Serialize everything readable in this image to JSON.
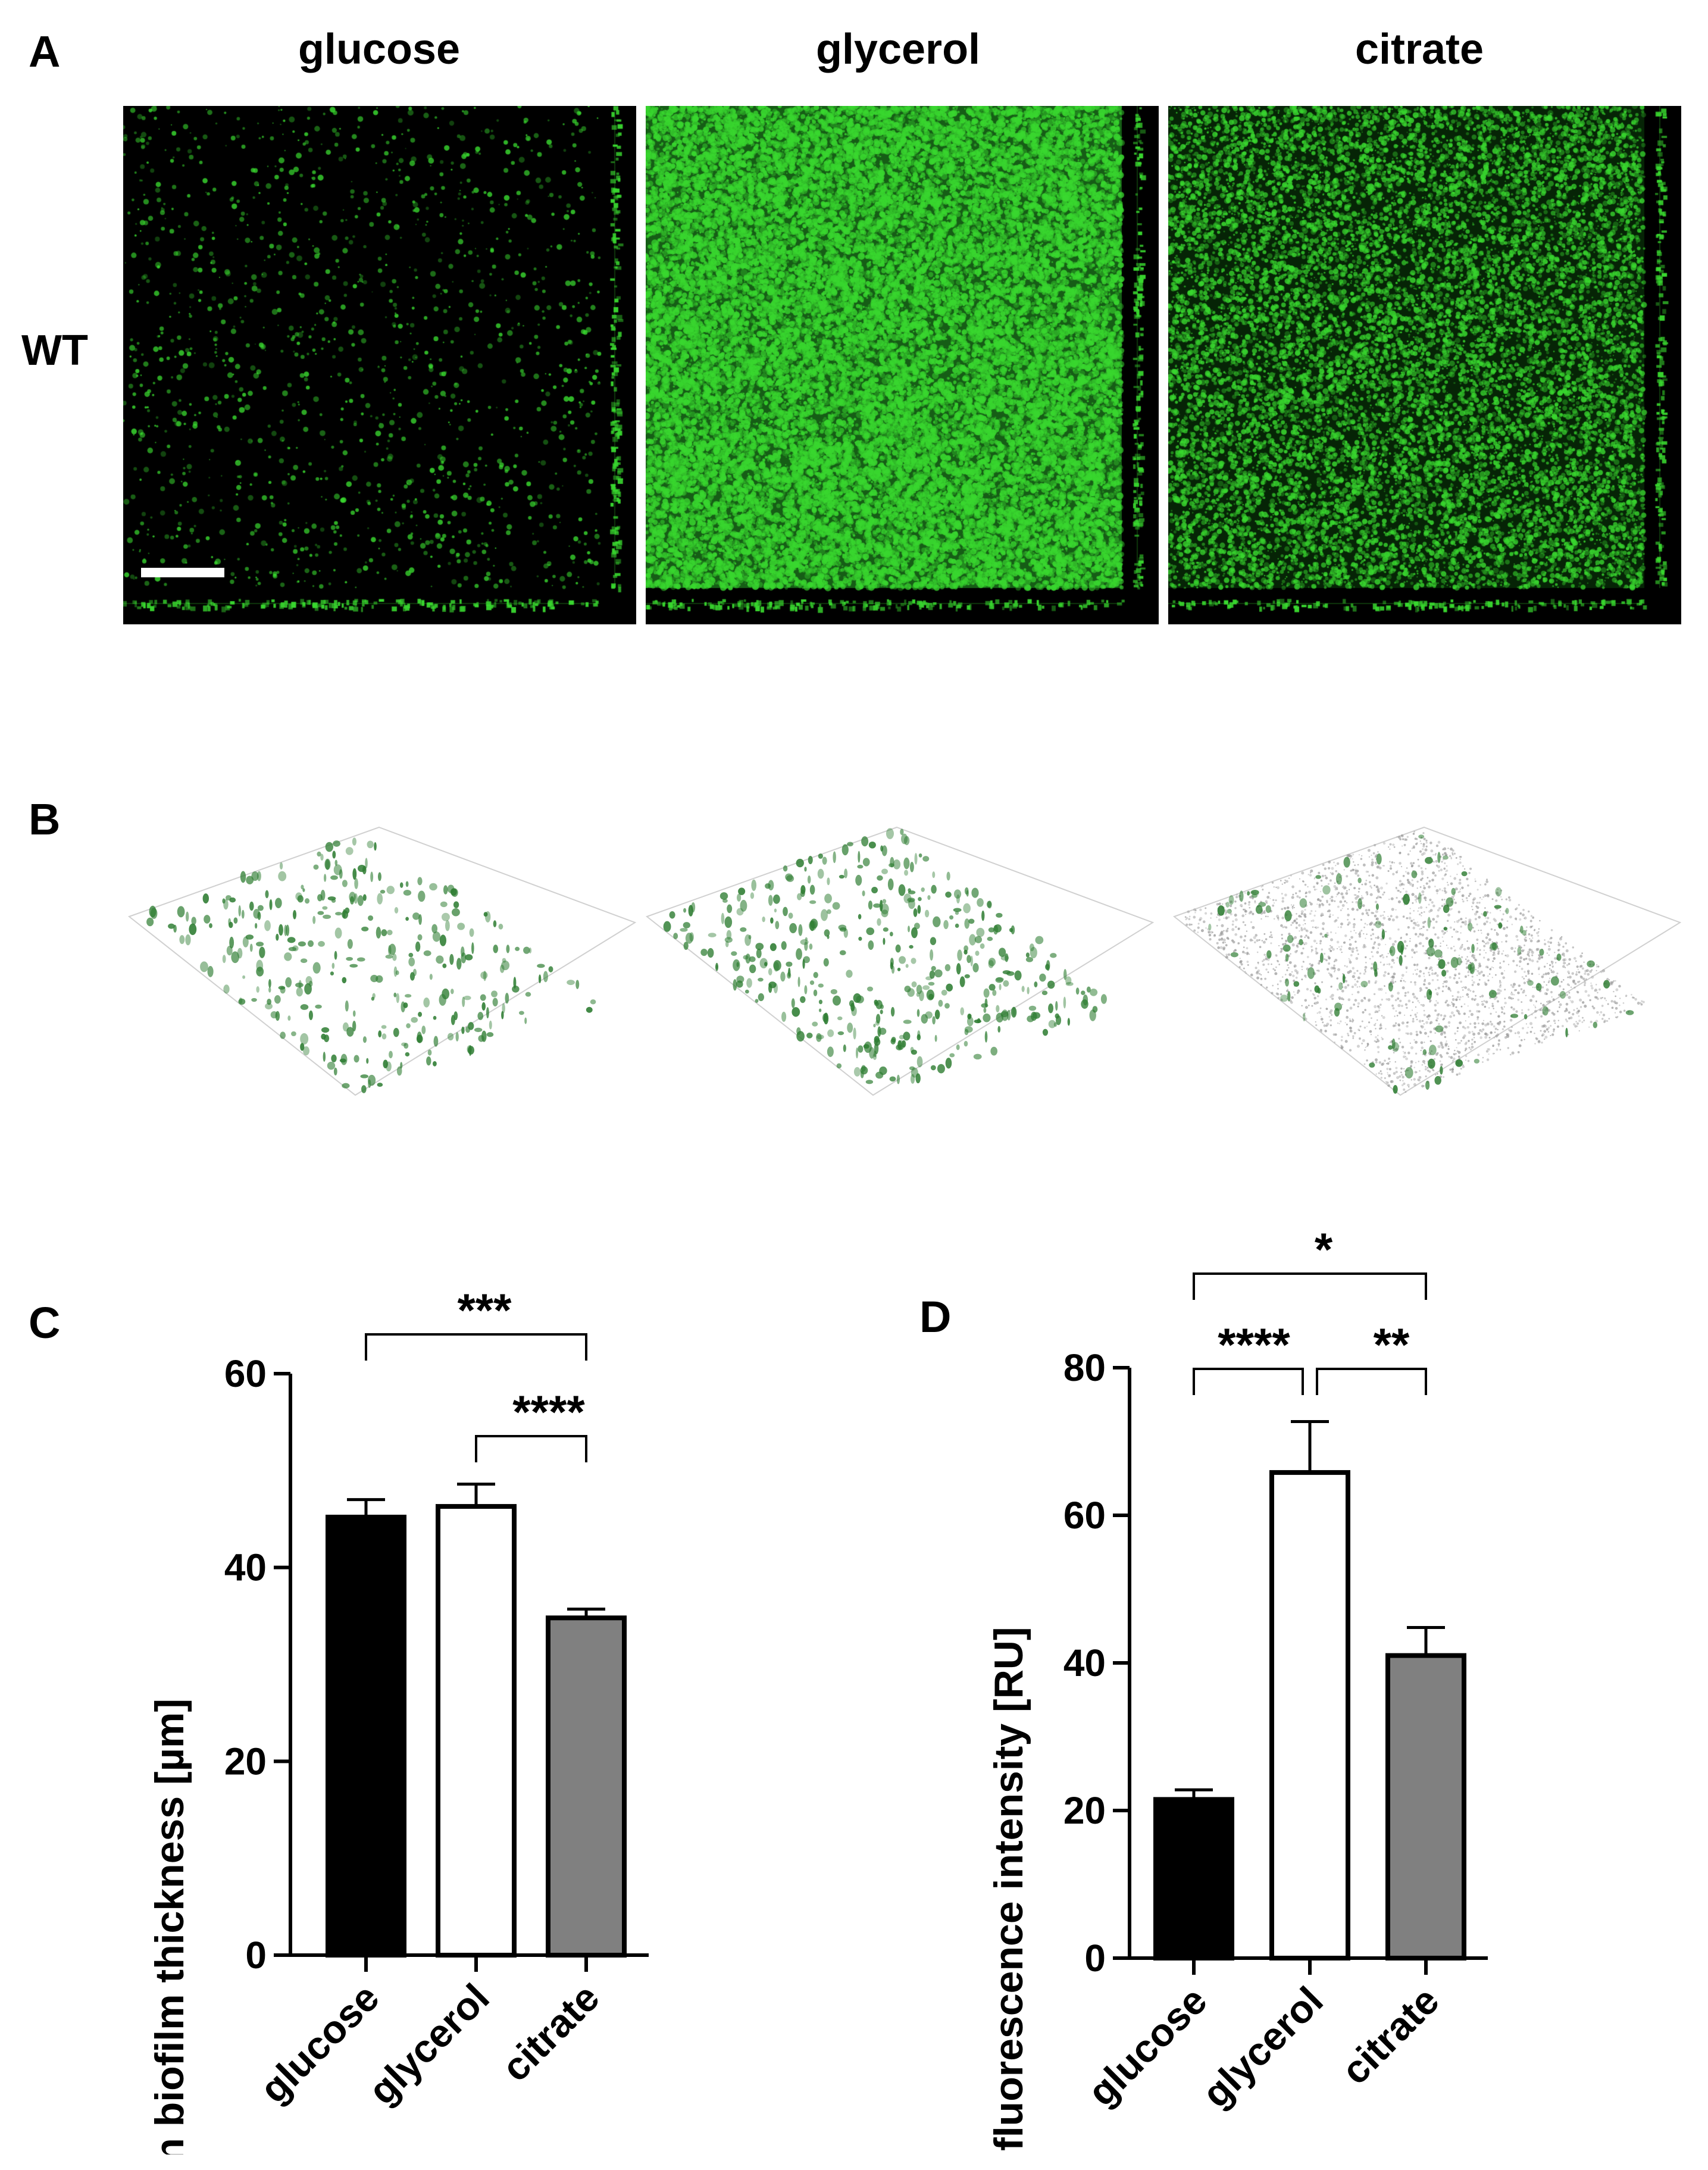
{
  "panels": {
    "a": {
      "letter": "A",
      "columns": [
        "glucose",
        "glycerol",
        "citrate"
      ],
      "row": "WT",
      "signal_color": "#39d72f"
    },
    "b": {
      "letter": "B",
      "render_color": "#2e7d32"
    },
    "c": {
      "letter": "C"
    },
    "d": {
      "letter": "D"
    }
  },
  "chart_data": [
    {
      "type": "bar",
      "categories": [
        "glucose",
        "glycerol",
        "citrate"
      ],
      "values": [
        45.2,
        46.3,
        34.8
      ],
      "errors": [
        1.8,
        2.3,
        0.9
      ],
      "bar_colors": [
        "#000000",
        "#ffffff",
        "#808080"
      ],
      "ylabel": "Mean biofilm thickness [µm]",
      "ylim": [
        0,
        60
      ],
      "yticks": [
        0,
        20,
        40,
        60
      ],
      "significance": [
        {
          "from": 0,
          "to": 2,
          "label": "***"
        },
        {
          "from": 1,
          "to": 2,
          "label": "****"
        }
      ]
    },
    {
      "type": "bar",
      "categories": [
        "glucose",
        "glycerol",
        "citrate"
      ],
      "values": [
        21.5,
        65.8,
        41.0
      ],
      "errors": [
        1.3,
        6.9,
        3.8
      ],
      "bar_colors": [
        "#000000",
        "#ffffff",
        "#808080"
      ],
      "ylabel": "Mean fluorescence intensity [RU]",
      "ylim": [
        0,
        80
      ],
      "yticks": [
        0,
        20,
        40,
        60,
        80
      ],
      "significance": [
        {
          "from": 0,
          "to": 2,
          "label": "*"
        },
        {
          "from": 0,
          "to": 1,
          "label": "****"
        },
        {
          "from": 1,
          "to": 2,
          "label": "**"
        }
      ]
    }
  ]
}
